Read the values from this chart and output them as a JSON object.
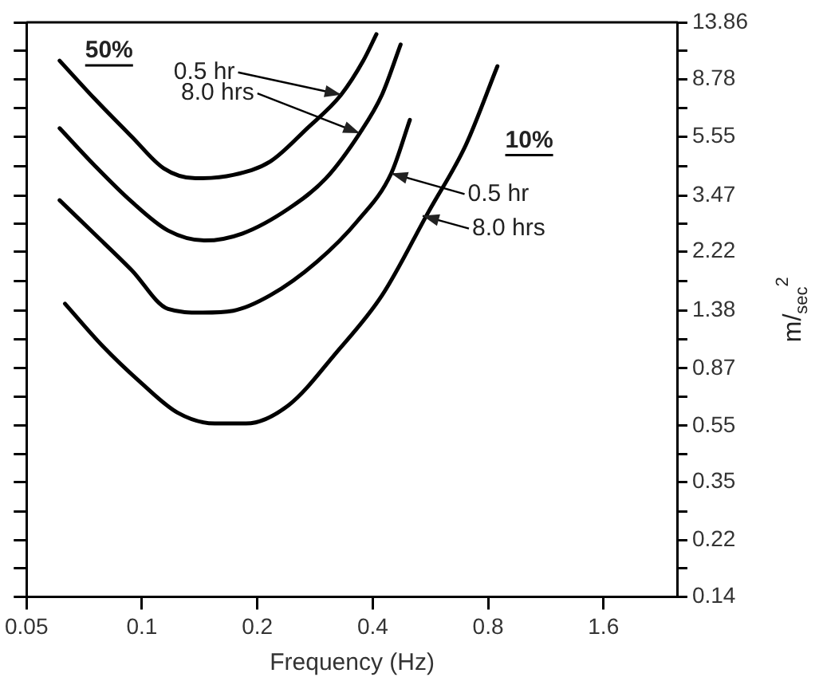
{
  "chart_data": {
    "type": "line",
    "xlabel": "Frequency (Hz)",
    "ylabel": "m/$_{sec}$$^{2}$",
    "log": "xy",
    "grid": false,
    "legend": false,
    "marker": "none",
    "line_style": "solid",
    "xlim": [
      0.05,
      2.5
    ],
    "xticks": [
      0.05,
      0.1,
      0.2,
      0.4,
      0.8,
      1.6
    ],
    "ylim": [
      0.14,
      13.86
    ],
    "yticks": [
      0.14,
      0.22,
      0.35,
      0.55,
      0.87,
      1.38,
      2.22,
      3.47,
      5.55,
      8.78,
      13.86
    ],
    "series": [
      {
        "color": "#000000",
        "x": [
          0.061,
          0.075,
          0.094,
          0.114,
          0.138,
          0.173,
          0.216,
          0.27,
          0.331,
          0.378,
          0.409
        ],
        "values": [
          10.2,
          7.56,
          5.56,
          4.31,
          3.98,
          4.09,
          4.55,
          5.94,
          7.77,
          10.2,
          12.6
        ]
      },
      {
        "color": "#000000",
        "x": [
          0.061,
          0.075,
          0.094,
          0.117,
          0.146,
          0.183,
          0.242,
          0.302,
          0.37,
          0.423,
          0.473
        ],
        "values": [
          5.94,
          4.43,
          3.3,
          2.62,
          2.42,
          2.56,
          3.13,
          3.98,
          5.71,
          7.77,
          11.6
        ]
      },
      {
        "color": "#000000",
        "x": [
          0.061,
          0.075,
          0.094,
          0.117,
          0.143,
          0.173,
          0.216,
          0.286,
          0.366,
          0.447,
          0.5
        ],
        "values": [
          3.34,
          2.56,
          1.91,
          1.4,
          1.36,
          1.38,
          1.56,
          2.04,
          2.84,
          4.14,
          6.35
        ]
      },
      {
        "color": "#000000",
        "x": [
          0.063,
          0.079,
          0.099,
          0.124,
          0.155,
          0.187,
          0.242,
          0.32,
          0.423,
          0.559,
          0.7,
          0.846
        ],
        "values": [
          1.46,
          1.04,
          0.78,
          0.61,
          0.56,
          0.56,
          0.65,
          0.98,
          1.56,
          3.04,
          5.2,
          9.76
        ]
      }
    ],
    "annotations": [
      "50%",
      {
        "text": "0.5 hr",
        "x": 0.331,
        "y": 7.77
      },
      {
        "text": "8.0 hrs",
        "x": 0.37,
        "y": 5.71
      },
      "10%",
      {
        "text": "0.5 hr",
        "x": 0.447,
        "y": 4.14
      },
      {
        "text": "8.0 hrs",
        "x": 0.54,
        "y": 2.95
      }
    ]
  }
}
